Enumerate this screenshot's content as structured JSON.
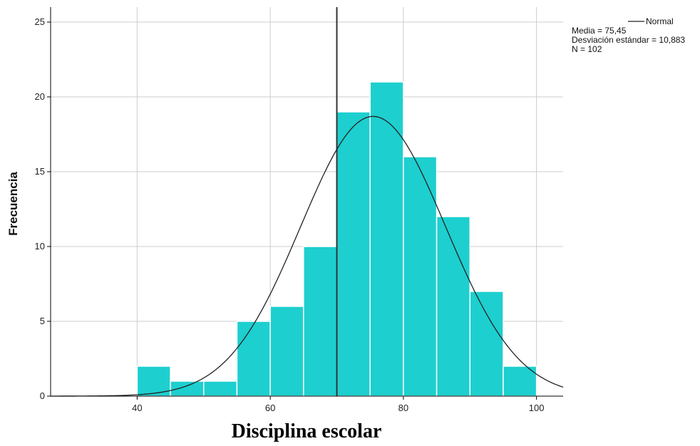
{
  "chart_data": {
    "type": "bar",
    "title": "",
    "xlabel": "Disciplina escolar",
    "ylabel": "Frecuencia",
    "xlim": [
      27,
      104
    ],
    "ylim": [
      0,
      26
    ],
    "x_ticks": [
      40,
      60,
      80,
      100
    ],
    "y_ticks": [
      0,
      5,
      10,
      15,
      20,
      25
    ],
    "bin_width": 5,
    "bins": [
      {
        "start": 40,
        "end": 45,
        "count": 2
      },
      {
        "start": 45,
        "end": 50,
        "count": 1
      },
      {
        "start": 50,
        "end": 55,
        "count": 1
      },
      {
        "start": 55,
        "end": 60,
        "count": 5
      },
      {
        "start": 60,
        "end": 65,
        "count": 6
      },
      {
        "start": 65,
        "end": 70,
        "count": 10
      },
      {
        "start": 70,
        "end": 75,
        "count": 19
      },
      {
        "start": 75,
        "end": 80,
        "count": 21
      },
      {
        "start": 80,
        "end": 85,
        "count": 16
      },
      {
        "start": 85,
        "end": 90,
        "count": 12
      },
      {
        "start": 90,
        "end": 95,
        "count": 7
      },
      {
        "start": 95,
        "end": 100,
        "count": 2
      }
    ],
    "reference_line_x": 70,
    "normal_curve": {
      "mean": 75.45,
      "sd": 10.883,
      "n": 102
    },
    "legend": {
      "series_label": "Normal",
      "stats": [
        "Media = 75,45",
        "Desviación estándar = 10,883",
        "N = 102"
      ],
      "placement": "top-right"
    },
    "grid": true,
    "colors": {
      "bar_fill": "#1ecfcf",
      "bar_edge": "#ffffff",
      "grid": "#cccccc",
      "curve": "#222222",
      "refline": "#333333",
      "axis": "#000000"
    }
  }
}
